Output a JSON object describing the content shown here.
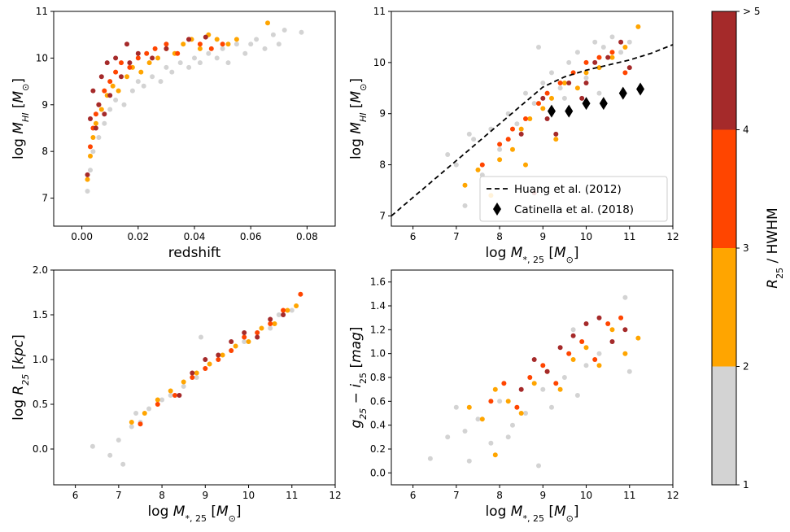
{
  "figure": {
    "colorbar": {
      "label": "R_25 / HWHM",
      "label_parts": {
        "main": "R",
        "sub": "25",
        "rest": " / HWHM"
      },
      "bins": [
        {
          "range": [
            1,
            2
          ],
          "color": "#d3d3d3"
        },
        {
          "range": [
            2,
            3
          ],
          "color": "#ffa500"
        },
        {
          "range": [
            3,
            4
          ],
          "color": "#ff4500"
        },
        {
          "range": [
            4,
            5
          ],
          "color": "#a52a2a"
        }
      ],
      "tick_labels": [
        "1",
        "2",
        "3",
        "4",
        "> 5"
      ]
    }
  },
  "chart_data": [
    {
      "type": "scatter",
      "id": "tl",
      "xlabel": "redshift",
      "ylabel": {
        "pre": "log M",
        "sub": "HI",
        "post": " [M",
        "sym": "⊙",
        "end": "]"
      },
      "xlim": [
        -0.01,
        0.09
      ],
      "ylim": [
        6.4,
        11
      ],
      "xticks": [
        0.0,
        0.02,
        0.04,
        0.06,
        0.08
      ],
      "xtick_labels": [
        "0.00",
        "0.02",
        "0.04",
        "0.06",
        "0.08"
      ],
      "yticks": [
        7,
        8,
        9,
        10,
        11
      ],
      "ytick_labels": [
        "7",
        "8",
        "9",
        "10",
        "11"
      ],
      "series": [
        {
          "name": "R25/HWHM 1-2",
          "color": "#d3d3d3",
          "x": [
            0.002,
            0.003,
            0.004,
            0.006,
            0.008,
            0.01,
            0.012,
            0.015,
            0.018,
            0.02,
            0.022,
            0.025,
            0.028,
            0.03,
            0.032,
            0.035,
            0.038,
            0.04,
            0.042,
            0.045,
            0.048,
            0.05,
            0.052,
            0.055,
            0.058,
            0.06,
            0.062,
            0.065,
            0.068,
            0.07,
            0.072,
            0.078
          ],
          "y": [
            7.15,
            7.6,
            8.0,
            8.3,
            8.6,
            8.9,
            9.1,
            9.0,
            9.3,
            9.5,
            9.4,
            9.6,
            9.5,
            9.8,
            9.7,
            9.9,
            9.8,
            10.0,
            9.9,
            10.1,
            10.0,
            10.2,
            9.9,
            10.3,
            10.1,
            10.3,
            10.4,
            10.2,
            10.5,
            10.3,
            10.6,
            10.55
          ]
        },
        {
          "name": "R25/HWHM 2-3",
          "color": "#ffa500",
          "x": [
            0.002,
            0.003,
            0.004,
            0.005,
            0.007,
            0.009,
            0.011,
            0.013,
            0.016,
            0.018,
            0.021,
            0.024,
            0.027,
            0.03,
            0.033,
            0.036,
            0.039,
            0.042,
            0.045,
            0.048,
            0.052,
            0.055,
            0.066
          ],
          "y": [
            7.4,
            7.9,
            8.3,
            8.6,
            8.9,
            9.2,
            9.4,
            9.3,
            9.6,
            9.8,
            9.7,
            9.9,
            10.0,
            10.2,
            10.1,
            10.3,
            10.4,
            10.2,
            10.5,
            10.4,
            10.3,
            10.4,
            10.75
          ]
        },
        {
          "name": "R25/HWHM 3-4",
          "color": "#ff4500",
          "x": [
            0.003,
            0.004,
            0.005,
            0.006,
            0.008,
            0.01,
            0.012,
            0.014,
            0.017,
            0.02,
            0.023,
            0.026,
            0.03,
            0.034,
            0.038,
            0.042,
            0.046,
            0.05
          ],
          "y": [
            8.1,
            8.5,
            8.8,
            9.0,
            9.3,
            9.5,
            9.7,
            9.9,
            9.8,
            10.0,
            10.1,
            10.2,
            10.3,
            10.1,
            10.4,
            10.3,
            10.2,
            10.3
          ]
        },
        {
          "name": "R25/HWHM >4",
          "color": "#a52a2a",
          "x": [
            0.002,
            0.003,
            0.004,
            0.005,
            0.006,
            0.007,
            0.008,
            0.009,
            0.01,
            0.012,
            0.014,
            0.016,
            0.017,
            0.02,
            0.025,
            0.03,
            0.038,
            0.044
          ],
          "y": [
            7.5,
            8.7,
            9.3,
            8.5,
            9.0,
            9.6,
            8.8,
            9.9,
            9.2,
            10.0,
            9.6,
            10.3,
            9.9,
            10.1,
            10.0,
            10.2,
            10.4,
            10.45
          ]
        }
      ]
    },
    {
      "type": "scatter",
      "id": "tr",
      "xlabel": {
        "pre": "log M",
        "sub": "*, 25",
        "post": " [M",
        "sym": "⊙",
        "end": "]"
      },
      "ylabel": {
        "pre": "log M",
        "sub": "HI",
        "post": " [M",
        "sym": "⊙",
        "end": "]"
      },
      "xlim": [
        5.5,
        12
      ],
      "ylim": [
        6.8,
        11
      ],
      "xticks": [
        6,
        7,
        8,
        9,
        10,
        11,
        12
      ],
      "xtick_labels": [
        "6",
        "7",
        "8",
        "9",
        "10",
        "11",
        "12"
      ],
      "yticks": [
        7,
        8,
        9,
        10,
        11
      ],
      "ytick_labels": [
        "7",
        "8",
        "9",
        "10",
        "11"
      ],
      "series": [
        {
          "name": "R25/HWHM 1-2",
          "color": "#d3d3d3",
          "x": [
            6.8,
            7.0,
            7.2,
            7.4,
            7.6,
            7.8,
            8.0,
            8.2,
            8.4,
            8.6,
            8.8,
            9.0,
            9.2,
            9.4,
            9.6,
            9.8,
            10.0,
            10.2,
            10.4,
            10.6,
            10.8,
            11.0,
            7.3,
            8.9,
            9.5,
            10.3
          ],
          "y": [
            8.2,
            8.0,
            7.2,
            8.5,
            7.8,
            8.7,
            8.3,
            9.0,
            8.8,
            9.4,
            9.2,
            9.6,
            9.8,
            9.5,
            10.0,
            10.2,
            9.7,
            10.4,
            10.3,
            10.5,
            10.2,
            10.4,
            8.6,
            10.3,
            9.3,
            9.4
          ]
        },
        {
          "name": "R25/HWHM 2-3",
          "color": "#ffa500",
          "x": [
            7.2,
            7.5,
            7.8,
            8.0,
            8.3,
            8.5,
            8.7,
            9.0,
            9.2,
            9.5,
            9.8,
            10.0,
            10.3,
            10.6,
            10.9,
            11.2,
            8.6,
            9.3
          ],
          "y": [
            7.6,
            7.9,
            7.4,
            8.1,
            8.3,
            8.7,
            8.9,
            9.1,
            9.3,
            9.6,
            9.5,
            9.8,
            9.9,
            10.1,
            10.3,
            10.7,
            8.0,
            8.5
          ]
        },
        {
          "name": "R25/HWHM 3-4",
          "color": "#ff4500",
          "x": [
            7.6,
            8.0,
            8.3,
            8.6,
            8.9,
            9.1,
            9.4,
            9.7,
            10.0,
            10.3,
            10.6,
            10.9,
            8.2
          ],
          "y": [
            8.0,
            8.4,
            8.7,
            8.9,
            9.2,
            9.4,
            9.6,
            9.8,
            10.0,
            10.1,
            10.2,
            9.8,
            8.5
          ]
        },
        {
          "name": "R25/HWHM >4",
          "color": "#a52a2a",
          "x": [
            8.5,
            8.8,
            9.0,
            9.3,
            9.6,
            9.9,
            10.2,
            10.5,
            10.8,
            11.0,
            9.1,
            10.0
          ],
          "y": [
            8.6,
            7.45,
            9.3,
            8.6,
            9.6,
            9.3,
            10.0,
            10.1,
            10.4,
            9.9,
            8.9,
            9.6
          ]
        }
      ],
      "lines": [
        {
          "name": "Huang et al. (2012)",
          "style": "dashed",
          "color": "#000000",
          "x": [
            5.5,
            9.0,
            9.5,
            10.0,
            10.5,
            11.0,
            11.5,
            12.0
          ],
          "y": [
            7.0,
            9.52,
            9.72,
            9.85,
            9.95,
            10.05,
            10.18,
            10.35
          ]
        }
      ],
      "markers": [
        {
          "name": "Catinella et al. (2018)",
          "shape": "diamond",
          "color": "#000000",
          "x": [
            9.2,
            9.6,
            10.0,
            10.4,
            10.85,
            11.25
          ],
          "y": [
            9.05,
            9.05,
            9.2,
            9.2,
            9.4,
            9.48
          ]
        }
      ],
      "legend": {
        "location": "lower-right",
        "entries": [
          "Huang et al. (2012)",
          "Catinella et al. (2018)"
        ]
      }
    },
    {
      "type": "scatter",
      "id": "bl",
      "xlabel": {
        "pre": "log M",
        "sub": "*, 25",
        "post": " [M",
        "sym": "⊙",
        "end": "]"
      },
      "ylabel": {
        "pre": "log R",
        "sub": "25",
        "post": " [kpc]",
        "sym": "",
        "end": ""
      },
      "xlim": [
        5.5,
        12
      ],
      "ylim": [
        -0.4,
        2.0
      ],
      "xticks": [
        6,
        7,
        8,
        9,
        10,
        11,
        12
      ],
      "xtick_labels": [
        "6",
        "7",
        "8",
        "9",
        "10",
        "11",
        "12"
      ],
      "yticks": [
        0.0,
        0.5,
        1.0,
        1.5,
        2.0
      ],
      "ytick_labels": [
        "0.0",
        "0.5",
        "1.0",
        "1.5",
        "2.0"
      ],
      "series": [
        {
          "name": "R25/HWHM 1-2",
          "color": "#d3d3d3",
          "x": [
            6.4,
            6.8,
            7.0,
            7.1,
            7.3,
            7.5,
            7.7,
            8.0,
            8.2,
            8.5,
            8.8,
            9.0,
            9.3,
            9.6,
            9.9,
            10.2,
            10.5,
            10.7,
            11.0,
            7.4,
            8.9
          ],
          "y": [
            0.03,
            -0.07,
            0.1,
            -0.17,
            0.25,
            0.3,
            0.45,
            0.55,
            0.6,
            0.7,
            0.8,
            0.9,
            1.05,
            1.1,
            1.2,
            1.3,
            1.35,
            1.5,
            1.55,
            0.4,
            1.25
          ]
        },
        {
          "name": "R25/HWHM 2-3",
          "color": "#ffa500",
          "x": [
            7.3,
            7.6,
            7.9,
            8.2,
            8.5,
            8.8,
            9.1,
            9.4,
            9.7,
            10.0,
            10.3,
            10.6,
            10.9,
            11.1
          ],
          "y": [
            0.3,
            0.4,
            0.55,
            0.65,
            0.75,
            0.85,
            0.95,
            1.05,
            1.15,
            1.2,
            1.35,
            1.4,
            1.55,
            1.6
          ]
        },
        {
          "name": "R25/HWHM 3-4",
          "color": "#ff4500",
          "x": [
            7.5,
            7.9,
            8.3,
            8.7,
            9.0,
            9.3,
            9.6,
            9.9,
            10.2,
            10.5,
            10.8,
            11.2
          ],
          "y": [
            0.28,
            0.5,
            0.6,
            0.8,
            0.9,
            1.0,
            1.1,
            1.25,
            1.3,
            1.4,
            1.55,
            1.73
          ]
        },
        {
          "name": "R25/HWHM >4",
          "color": "#a52a2a",
          "x": [
            8.4,
            8.7,
            9.0,
            9.3,
            9.6,
            9.9,
            10.2,
            10.5,
            10.8
          ],
          "y": [
            0.6,
            0.85,
            1.0,
            1.05,
            1.2,
            1.3,
            1.25,
            1.45,
            1.5
          ]
        }
      ]
    },
    {
      "type": "scatter",
      "id": "br",
      "xlabel": {
        "pre": "log M",
        "sub": "*, 25",
        "post": " [M",
        "sym": "⊙",
        "end": "]"
      },
      "ylabel": {
        "pre": "g",
        "sub": "25",
        "post": " − i",
        "sub2": "25",
        "end": " [mag]"
      },
      "xlim": [
        5.5,
        12
      ],
      "ylim": [
        -0.1,
        1.7
      ],
      "xticks": [
        6,
        7,
        8,
        9,
        10,
        11,
        12
      ],
      "xtick_labels": [
        "6",
        "7",
        "8",
        "9",
        "10",
        "11",
        "12"
      ],
      "yticks": [
        0.0,
        0.2,
        0.4,
        0.6,
        0.8,
        1.0,
        1.2,
        1.4,
        1.6
      ],
      "ytick_labels": [
        "0.0",
        "0.2",
        "0.4",
        "0.6",
        "0.8",
        "1.0",
        "1.2",
        "1.4",
        "1.6"
      ],
      "series": [
        {
          "name": "R25/HWHM 1-2",
          "color": "#d3d3d3",
          "x": [
            6.4,
            6.8,
            7.0,
            7.2,
            7.3,
            7.5,
            7.8,
            8.0,
            8.3,
            8.6,
            8.9,
            9.0,
            9.2,
            9.5,
            9.8,
            10.0,
            10.3,
            10.6,
            10.9,
            11.0,
            8.2,
            9.7
          ],
          "y": [
            0.12,
            0.3,
            0.55,
            0.35,
            0.1,
            0.45,
            0.25,
            0.6,
            0.4,
            0.5,
            0.06,
            0.7,
            0.55,
            0.8,
            0.65,
            0.9,
            1.0,
            1.1,
            1.47,
            0.85,
            0.3,
            1.2
          ]
        },
        {
          "name": "R25/HWHM 2-3",
          "color": "#ffa500",
          "x": [
            7.3,
            7.6,
            7.9,
            8.2,
            8.5,
            8.8,
            9.1,
            9.4,
            9.7,
            10.0,
            10.3,
            10.6,
            10.9,
            11.2,
            7.9
          ],
          "y": [
            0.55,
            0.45,
            0.7,
            0.6,
            0.5,
            0.75,
            0.85,
            0.7,
            0.95,
            1.05,
            0.9,
            1.2,
            1.0,
            1.13,
            0.15
          ]
        },
        {
          "name": "R25/HWHM 3-4",
          "color": "#ff4500",
          "x": [
            7.8,
            8.1,
            8.4,
            8.7,
            9.0,
            9.3,
            9.6,
            9.9,
            10.2,
            10.5,
            10.8
          ],
          "y": [
            0.6,
            0.75,
            0.55,
            0.8,
            0.9,
            0.75,
            1.0,
            1.1,
            0.95,
            1.25,
            1.3
          ]
        },
        {
          "name": "R25/HWHM >4",
          "color": "#a52a2a",
          "x": [
            8.5,
            8.8,
            9.1,
            9.4,
            9.7,
            10.0,
            10.3,
            10.6,
            10.9
          ],
          "y": [
            0.7,
            0.95,
            0.85,
            1.05,
            1.15,
            1.25,
            1.3,
            1.1,
            1.2
          ]
        }
      ]
    }
  ]
}
